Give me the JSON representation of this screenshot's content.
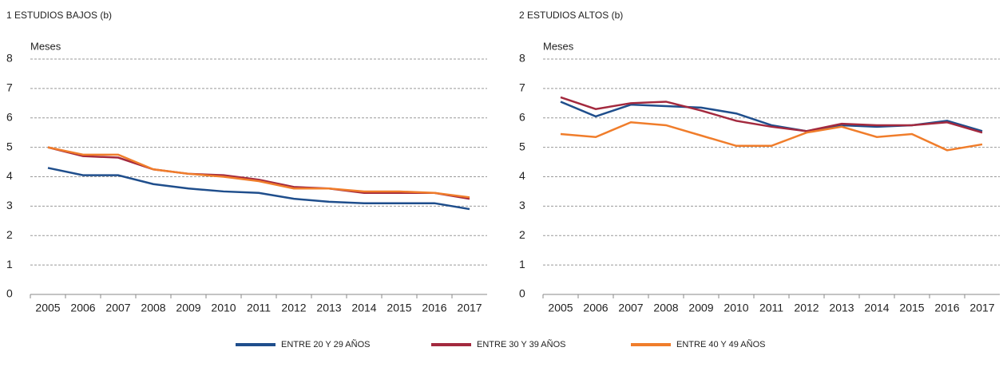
{
  "chart_data": [
    {
      "type": "line",
      "title": "1  ESTUDIOS BAJOS (b)",
      "y_label": "Meses",
      "categories": [
        "2005",
        "2006",
        "2007",
        "2008",
        "2009",
        "2010",
        "2011",
        "2012",
        "2013",
        "2014",
        "2015",
        "2016",
        "2017"
      ],
      "ylim": [
        0,
        8
      ],
      "yticks": [
        0,
        1,
        2,
        3,
        4,
        5,
        6,
        7,
        8
      ],
      "grid": true,
      "series": [
        {
          "name": "ENTRE 20 Y 29 AÑOS",
          "color": "#1f4e8c",
          "values": [
            4.3,
            4.05,
            4.05,
            3.75,
            3.6,
            3.5,
            3.45,
            3.25,
            3.15,
            3.1,
            3.1,
            3.1,
            2.9
          ]
        },
        {
          "name": "ENTRE 30 Y 39 AÑOS",
          "color": "#a3293e",
          "values": [
            5.0,
            4.7,
            4.65,
            4.25,
            4.1,
            4.05,
            3.9,
            3.65,
            3.6,
            3.45,
            3.45,
            3.45,
            3.25
          ]
        },
        {
          "name": "ENTRE 40 Y 49 AÑOS",
          "color": "#f07d2b",
          "values": [
            5.0,
            4.75,
            4.75,
            4.25,
            4.1,
            4.0,
            3.85,
            3.6,
            3.6,
            3.5,
            3.5,
            3.45,
            3.3
          ]
        }
      ]
    },
    {
      "type": "line",
      "title": "2  ESTUDIOS ALTOS (b)",
      "y_label": "Meses",
      "categories": [
        "2005",
        "2006",
        "2007",
        "2008",
        "2009",
        "2010",
        "2011",
        "2012",
        "2013",
        "2014",
        "2015",
        "2016",
        "2017"
      ],
      "ylim": [
        0,
        8
      ],
      "yticks": [
        0,
        1,
        2,
        3,
        4,
        5,
        6,
        7,
        8
      ],
      "grid": true,
      "series": [
        {
          "name": "ENTRE 20 Y 29 AÑOS",
          "color": "#1f4e8c",
          "values": [
            6.55,
            6.05,
            6.45,
            6.4,
            6.35,
            6.15,
            5.75,
            5.55,
            5.75,
            5.7,
            5.75,
            5.9,
            5.55
          ]
        },
        {
          "name": "ENTRE 30 Y 39 AÑOS",
          "color": "#a3293e",
          "values": [
            6.7,
            6.3,
            6.5,
            6.55,
            6.25,
            5.9,
            5.7,
            5.55,
            5.8,
            5.75,
            5.75,
            5.85,
            5.5
          ]
        },
        {
          "name": "ENTRE 40 Y 49 AÑOS",
          "color": "#f07d2b",
          "values": [
            5.45,
            5.35,
            5.85,
            5.75,
            5.4,
            5.05,
            5.05,
            5.5,
            5.7,
            5.35,
            5.45,
            4.9,
            5.1
          ]
        }
      ]
    }
  ]
}
